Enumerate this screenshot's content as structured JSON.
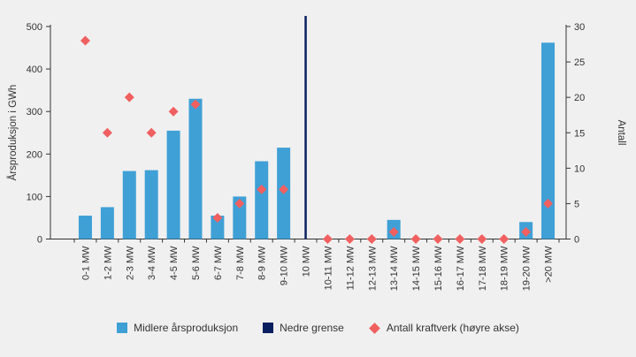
{
  "figure": {
    "background": "#f0f0f0",
    "text_color": "#333333"
  },
  "chart_data": {
    "type": "bar",
    "subtype": "bar + scatter overlay, dual axes",
    "categories": [
      "0-1 MW",
      "1-2 MW",
      "2-3 MW",
      "3-4 MW",
      "4-5 MW",
      "5-6 MW",
      "6-7 MW",
      "7-8 MW",
      "8-9 MW",
      "9-10 MW",
      "10 MW",
      "10-11 MW",
      "11-12 MW",
      "12-13 MW",
      "13-14 MW",
      "14-15 MW",
      "15-16 MW",
      "16-17 MW",
      "17-18 MW",
      "18-19 MW",
      "19-20 MW",
      ">20 MW"
    ],
    "series": [
      {
        "name": "Midlere årsproduksjon",
        "type": "bar",
        "axis": "left",
        "color": "#3fa0d6",
        "values": [
          55,
          75,
          160,
          162,
          255,
          330,
          55,
          100,
          183,
          215,
          null,
          0,
          0,
          0,
          45,
          0,
          0,
          0,
          0,
          0,
          40,
          462
        ]
      },
      {
        "name": "Nedre grense",
        "type": "vline",
        "category": "10 MW",
        "color": "#0a1f5f"
      },
      {
        "name": "Antall kraftverk (høyre akse)",
        "type": "scatter",
        "marker": "diamond",
        "axis": "right",
        "color": "#f06060",
        "values": [
          28,
          15,
          20,
          15,
          18,
          19,
          3,
          5,
          7,
          7,
          null,
          0,
          0,
          0,
          1,
          0,
          0,
          0,
          0,
          0,
          1,
          5
        ]
      }
    ],
    "left_axis": {
      "label": "Årsproduksjon i GWh",
      "min": 0,
      "max": 500,
      "tick": 100
    },
    "right_axis": {
      "label": "Antall",
      "min": 0,
      "max": 30,
      "tick": 5
    },
    "grid": false,
    "legend_position": "bottom"
  }
}
